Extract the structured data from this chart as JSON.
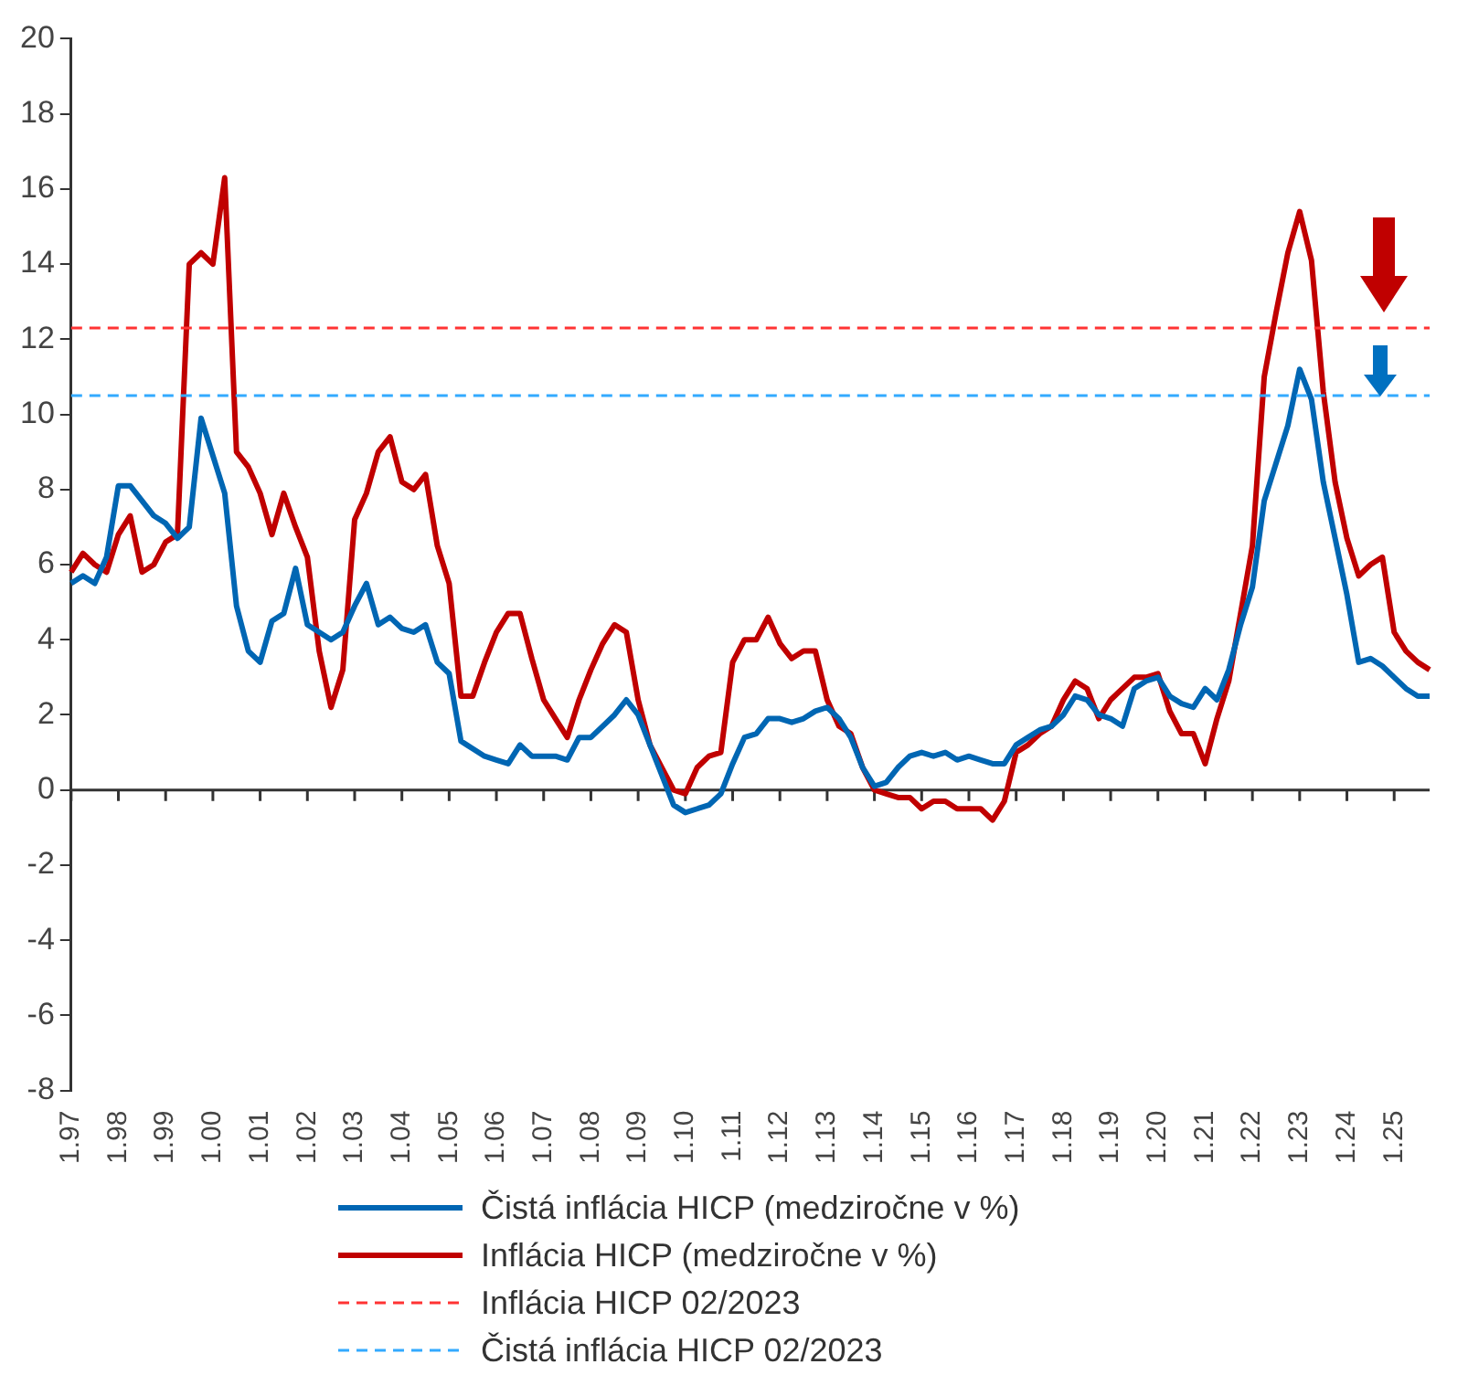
{
  "chart_data": {
    "type": "line",
    "categories": [
      "1.97",
      null,
      null,
      null,
      "1.98",
      null,
      null,
      null,
      "1.99",
      null,
      null,
      null,
      "1.00",
      null,
      null,
      null,
      "1.01",
      null,
      null,
      null,
      "1.02",
      null,
      null,
      null,
      "1.03",
      null,
      null,
      null,
      "1.04",
      null,
      null,
      null,
      "1.05",
      null,
      null,
      null,
      "1.06",
      null,
      null,
      null,
      "1.07",
      null,
      null,
      null,
      "1.08",
      null,
      null,
      null,
      "1.09",
      null,
      null,
      null,
      "1.10",
      null,
      null,
      null,
      "1.11",
      null,
      null,
      null,
      "1.12",
      null,
      null,
      null,
      "1.13",
      null,
      null,
      null,
      "1.14",
      null,
      null,
      null,
      "1.15",
      null,
      null,
      null,
      "1.16",
      null,
      null,
      null,
      "1.17",
      null,
      null,
      null,
      "1.18",
      null,
      null,
      null,
      "1.19",
      null,
      null,
      null,
      "1.20",
      null,
      null,
      null,
      "1.21",
      null,
      null,
      null,
      "1.22",
      null,
      null,
      null,
      "1.23",
      null,
      null,
      null,
      "1.24",
      null,
      null,
      null,
      "1.25",
      null,
      null,
      null
    ],
    "series": [
      {
        "name": "Čistá inflácia HICP (medziročne v %)",
        "color": "#0066b3",
        "values": [
          5.5,
          5.7,
          5.5,
          6.2,
          8.1,
          8.1,
          7.7,
          7.3,
          7.1,
          6.7,
          7.0,
          9.9,
          8.9,
          7.9,
          4.9,
          3.7,
          3.4,
          4.5,
          4.7,
          5.9,
          4.4,
          4.2,
          4.0,
          4.2,
          4.9,
          5.5,
          4.4,
          4.6,
          4.3,
          4.2,
          4.4,
          3.4,
          3.1,
          1.3,
          1.1,
          0.9,
          0.8,
          0.7,
          1.2,
          0.9,
          0.9,
          0.9,
          0.8,
          1.4,
          1.4,
          1.7,
          2.0,
          2.4,
          2.0,
          1.2,
          0.4,
          -0.4,
          -0.6,
          -0.5,
          -0.4,
          -0.1,
          0.7,
          1.4,
          1.5,
          1.9,
          1.9,
          1.8,
          1.9,
          2.1,
          2.2,
          1.9,
          1.4,
          0.6,
          0.1,
          0.2,
          0.6,
          0.9,
          1.0,
          0.9,
          1.0,
          0.8,
          0.9,
          0.8,
          0.7,
          0.7,
          1.2,
          1.4,
          1.6,
          1.7,
          2.0,
          2.5,
          2.4,
          2.0,
          1.9,
          1.7,
          2.7,
          2.9,
          3.0,
          2.5,
          2.3,
          2.2,
          2.7,
          2.4,
          3.2,
          4.4,
          5.4,
          7.7,
          8.7,
          9.7,
          11.2,
          10.4,
          8.2,
          6.7,
          5.2,
          3.4,
          3.5,
          3.3,
          3.0,
          2.7,
          2.5,
          2.5
        ]
      },
      {
        "name": "Inflácia HICP (medziročne v %)",
        "color": "#c00000",
        "values": [
          5.8,
          6.3,
          6.0,
          5.8,
          6.8,
          7.3,
          5.8,
          6.0,
          6.6,
          6.8,
          14.0,
          14.3,
          14.0,
          16.3,
          9.0,
          8.6,
          7.9,
          6.8,
          7.9,
          7.0,
          6.2,
          3.7,
          2.2,
          3.2,
          7.2,
          7.9,
          9.0,
          9.4,
          8.2,
          8.0,
          8.4,
          6.5,
          5.5,
          2.5,
          2.5,
          3.4,
          4.2,
          4.7,
          4.7,
          3.5,
          2.4,
          1.9,
          1.4,
          2.4,
          3.2,
          3.9,
          4.4,
          4.2,
          2.4,
          1.2,
          0.6,
          0.0,
          -0.1,
          0.6,
          0.9,
          1.0,
          3.4,
          4.0,
          4.0,
          4.6,
          3.9,
          3.5,
          3.7,
          3.7,
          2.4,
          1.7,
          1.5,
          0.6,
          0.0,
          -0.1,
          -0.2,
          -0.2,
          -0.5,
          -0.3,
          -0.3,
          -0.5,
          -0.5,
          -0.5,
          -0.8,
          -0.3,
          1.0,
          1.2,
          1.5,
          1.7,
          2.4,
          2.9,
          2.7,
          1.9,
          2.4,
          2.7,
          3.0,
          3.0,
          3.1,
          2.1,
          1.5,
          1.5,
          0.7,
          1.9,
          2.9,
          4.7,
          6.5,
          11.0,
          12.7,
          14.3,
          15.4,
          14.1,
          10.6,
          8.2,
          6.7,
          5.7,
          6.0,
          6.2,
          4.2,
          3.7,
          3.4,
          3.2
        ]
      }
    ],
    "ref_lines": [
      {
        "axis": "y",
        "value": 12.3,
        "label": "Inflácia HICP 02/2023",
        "color": "#ff3333",
        "line_style": "dashed"
      },
      {
        "axis": "y",
        "value": 10.5,
        "label": "Čistá inflácia HICP 02/2023",
        "color": "#33aaff",
        "line_style": "dashed"
      }
    ],
    "ylim": [
      -8,
      20
    ],
    "yticks": [
      -8,
      -6,
      -4,
      -2,
      0,
      2,
      4,
      6,
      8,
      10,
      12,
      14,
      16,
      18,
      20
    ],
    "legend": "bottom",
    "marker": "none"
  }
}
